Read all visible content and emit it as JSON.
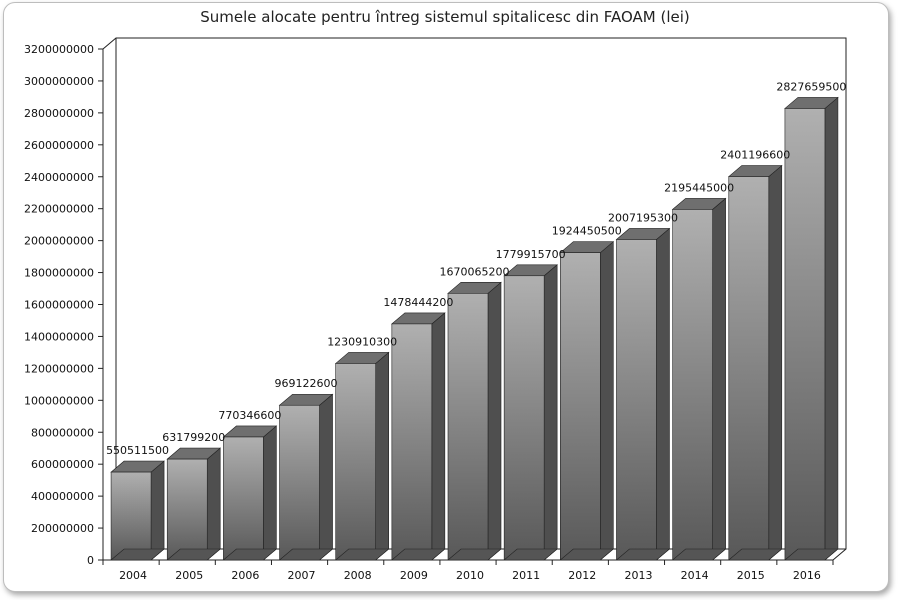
{
  "chart_data": {
    "type": "bar",
    "title": "Sumele alocate pentru întreg sistemul spitalicesc din FAOAM (lei)",
    "xlabel": "",
    "ylabel": "",
    "categories": [
      "2004",
      "2005",
      "2006",
      "2007",
      "2008",
      "2009",
      "2010",
      "2011",
      "2012",
      "2013",
      "2014",
      "2015",
      "2016"
    ],
    "values": [
      550511500,
      631799200,
      770346600,
      969122600,
      1230910300,
      1478444200,
      1670065200,
      1779915700,
      1924450500,
      2007195300,
      2195445000,
      2401196600,
      2827659500
    ],
    "data_labels": [
      "550511500",
      "631799200",
      "770346600",
      "969122600",
      "1230910300",
      "1478444200",
      "1670065200",
      "1779915700",
      "1924450500",
      "2007195300",
      "2195445000",
      "2401196600",
      "2827659500"
    ],
    "yticks": [
      "0",
      "200000000",
      "400000000",
      "600000000",
      "800000000",
      "1000000000",
      "1200000000",
      "1400000000",
      "1600000000",
      "1800000000",
      "2000000000",
      "2200000000",
      "2400000000",
      "2600000000",
      "2800000000",
      "3000000000",
      "3200000000"
    ],
    "ylim": [
      0,
      3200000000
    ],
    "grid": false,
    "bar_style": "3d",
    "colors": {
      "bar_top": "#6f6f6f",
      "bar_side": "#4f4f4f"
    }
  }
}
